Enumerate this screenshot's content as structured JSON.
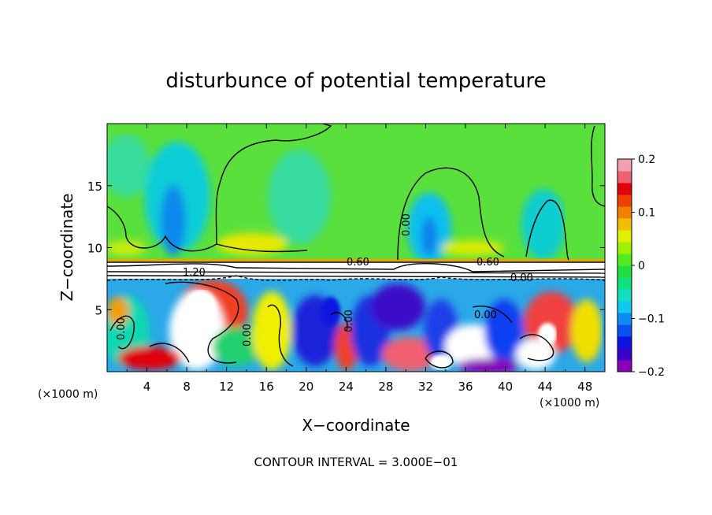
{
  "chart_data": {
    "type": "heatmap",
    "title": "disturbunce of potential temperature",
    "xlabel": "X−coordinate",
    "ylabel": "Z−coordinate",
    "x_unit_left": "(×1000 m)",
    "x_unit_right": "(×1000 m)",
    "xlim": [
      0,
      50
    ],
    "ylim": [
      0,
      20
    ],
    "x_ticks": [
      4,
      8,
      12,
      16,
      20,
      24,
      28,
      32,
      36,
      40,
      44,
      48
    ],
    "y_ticks": [
      5,
      10,
      15
    ],
    "colorbar": {
      "range": [
        -0.2,
        0.2
      ],
      "tick_values": [
        0.2,
        0.1,
        0,
        -0.1,
        -0.2
      ],
      "tick_labels": [
        "0.2",
        "0.1",
        "0",
        "−0.1",
        "−0.2"
      ],
      "colors": [
        "#8a00b8",
        "#3a00c8",
        "#0a14e0",
        "#0a50f0",
        "#0a8cf0",
        "#10c8f0",
        "#10e0c0",
        "#10e080",
        "#20e040",
        "#50ec20",
        "#a0f000",
        "#e0f000",
        "#f0c000",
        "#f08000",
        "#f04000",
        "#e00010",
        "#f06070",
        "#f0a0b0"
      ]
    },
    "contour_labels": [
      "0.60",
      "0.60",
      "1.20",
      "0.00",
      "0.00",
      "0.00",
      "0.00",
      "0.00",
      "0.00"
    ],
    "footnote": "CONTOUR INTERVAL = 3.000E−01"
  }
}
